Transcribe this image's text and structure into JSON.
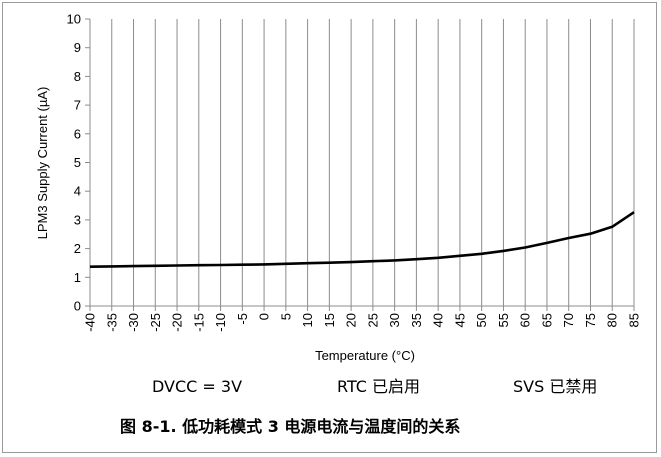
{
  "chart_data": {
    "type": "line",
    "xlabel": "Temperature (°C)",
    "ylabel": "LPM3 Supply Current (µA)",
    "xlim": [
      -40,
      85
    ],
    "ylim": [
      0,
      10
    ],
    "x_ticks": [
      -40,
      -35,
      -30,
      -25,
      -20,
      -15,
      -10,
      -5,
      0,
      5,
      10,
      15,
      20,
      25,
      30,
      35,
      40,
      45,
      50,
      55,
      60,
      65,
      70,
      75,
      80,
      85
    ],
    "y_ticks": [
      0,
      1,
      2,
      3,
      4,
      5,
      6,
      7,
      8,
      9,
      10
    ],
    "grid": "vertical",
    "series": [
      {
        "color": "#000000",
        "x": [
          -40,
          -35,
          -30,
          -25,
          -20,
          -15,
          -10,
          -5,
          0,
          5,
          10,
          15,
          20,
          25,
          30,
          35,
          40,
          45,
          50,
          55,
          60,
          65,
          70,
          75,
          80,
          85
        ],
        "y": [
          1.37,
          1.38,
          1.39,
          1.4,
          1.41,
          1.42,
          1.43,
          1.44,
          1.45,
          1.47,
          1.49,
          1.51,
          1.53,
          1.56,
          1.59,
          1.63,
          1.68,
          1.75,
          1.82,
          1.92,
          2.04,
          2.2,
          2.37,
          2.52,
          2.76,
          3.27
        ]
      }
    ]
  },
  "conditions": {
    "dvcc": "DVCC = 3V",
    "rtc": "RTC 已启用",
    "svs": "SVS 已禁用"
  },
  "caption": "图 8-1. 低功耗模式 3 电源电流与温度间的关系"
}
